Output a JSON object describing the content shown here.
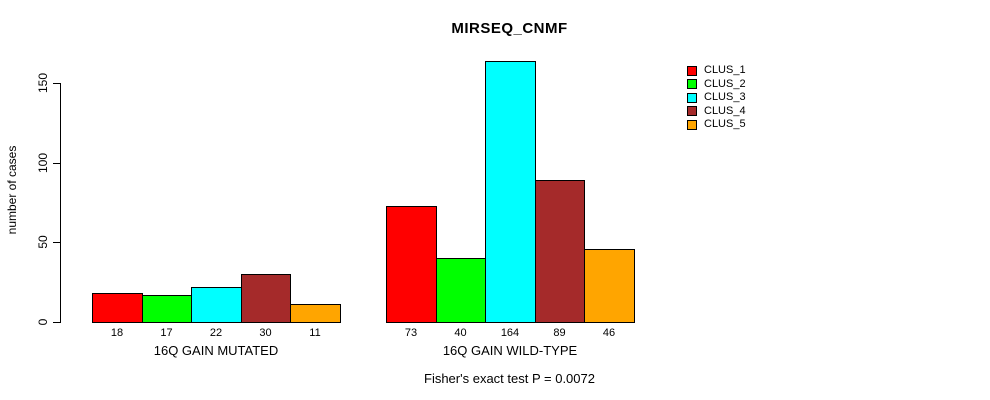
{
  "chart_data": {
    "type": "bar",
    "title": "MIRSEQ_CNMF",
    "ylabel": "number of cases",
    "xlabel": "",
    "ylim": [
      0,
      150
    ],
    "yticks": [
      0,
      50,
      100,
      150
    ],
    "grid": false,
    "legend_position": "right",
    "bar_value_labels_shown": true,
    "categories": [
      "16Q GAIN MUTATED",
      "16Q GAIN WILD-TYPE"
    ],
    "series": [
      {
        "name": "CLUS_1",
        "color": "#FF0000",
        "values": [
          18,
          73
        ]
      },
      {
        "name": "CLUS_2",
        "color": "#00FF00",
        "values": [
          17,
          40
        ]
      },
      {
        "name": "CLUS_3",
        "color": "#00FFFF",
        "values": [
          22,
          164
        ]
      },
      {
        "name": "CLUS_4",
        "color": "#A52A2A",
        "values": [
          30,
          89
        ]
      },
      {
        "name": "CLUS_5",
        "color": "#FFA500",
        "values": [
          11,
          46
        ]
      }
    ],
    "annotation": "Fisher's exact test P = 0.0072"
  }
}
